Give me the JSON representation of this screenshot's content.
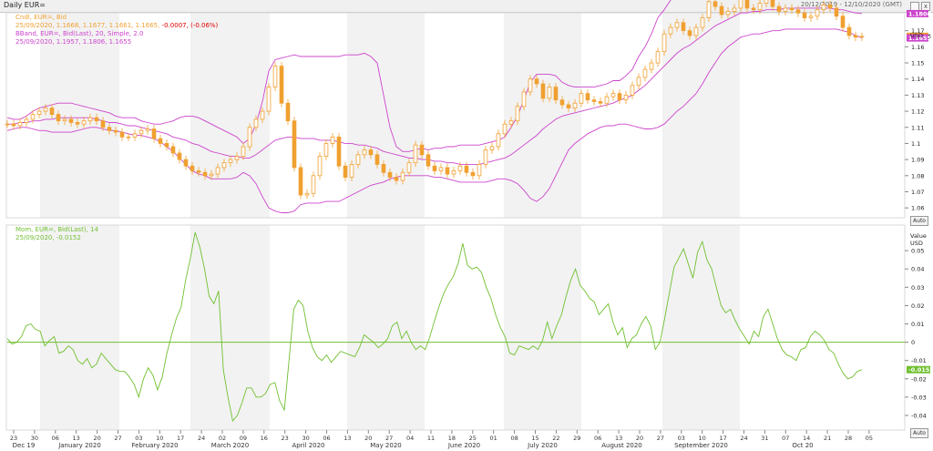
{
  "window": {
    "title": "Daily EUR=",
    "range": "20/12/2019 - 12/10/2020 (GMT)",
    "close_glyph": "x"
  },
  "legend": {
    "line1": "Cndl, EUR=, Bid",
    "line2": "25/09/2020, 1.1668, 1.1677, 1.1661, 1.1665,",
    "line2_change": "-0.0007, (-0.06%)",
    "line3": "BBand, EUR=, Bid(Last), 20, Simple, 2.0",
    "line4": "25/09/2020, 1.1957, 1.1806, 1.1655",
    "mom1": "Mom, EUR=, Bid(Last), 14",
    "mom2": "25/09/2020, -0.0152"
  },
  "axis_headers": {
    "price": "USD",
    "mom_value": "Value",
    "mom_unit": "USD"
  },
  "auto_label": "Auto",
  "colors": {
    "candle": "#f0a030",
    "bband": "#cc44cc",
    "mom": "#70c030",
    "zero": "#70c030",
    "band_bg": "#f2f2f2"
  },
  "chart_data": [
    {
      "type": "candlestick",
      "series_name": "EUR=",
      "ylim": [
        1.055,
        1.18
      ],
      "yticks": [
        1.06,
        1.07,
        1.08,
        1.09,
        1.1,
        1.11,
        1.12,
        1.13,
        1.14,
        1.15,
        1.16,
        1.17
      ],
      "ytick_labels": [
        "1.06",
        "1.07",
        "1.08",
        "1.09",
        "1.1",
        "1.11",
        "1.12",
        "1.13",
        "1.14",
        "1.15",
        "1.16",
        "1.17"
      ],
      "price_tags": [
        {
          "value": 1.1957,
          "label": "1.1957",
          "color": "#cc44cc"
        },
        {
          "value": 1.1806,
          "label": "1.1806",
          "color": "#cc44cc"
        },
        {
          "value": 1.1665,
          "label": "1.1665",
          "color": "#f0a030"
        },
        {
          "value": 1.1655,
          "label": "1.1655",
          "color": "#cc44cc"
        }
      ],
      "close": [
        1.112,
        1.111,
        1.113,
        1.115,
        1.118,
        1.12,
        1.122,
        1.118,
        1.114,
        1.115,
        1.113,
        1.112,
        1.114,
        1.116,
        1.114,
        1.11,
        1.108,
        1.107,
        1.104,
        1.104,
        1.106,
        1.108,
        1.109,
        1.103,
        1.1,
        1.098,
        1.094,
        1.09,
        1.086,
        1.083,
        1.082,
        1.08,
        1.081,
        1.085,
        1.088,
        1.09,
        1.092,
        1.098,
        1.11,
        1.115,
        1.12,
        1.135,
        1.148,
        1.125,
        1.114,
        1.085,
        1.068,
        1.069,
        1.08,
        1.092,
        1.1,
        1.104,
        1.086,
        1.079,
        1.087,
        1.093,
        1.096,
        1.093,
        1.087,
        1.082,
        1.079,
        1.077,
        1.082,
        1.088,
        1.099,
        1.093,
        1.086,
        1.083,
        1.085,
        1.081,
        1.083,
        1.086,
        1.082,
        1.08,
        1.087,
        1.096,
        1.098,
        1.106,
        1.112,
        1.114,
        1.123,
        1.132,
        1.14,
        1.137,
        1.128,
        1.135,
        1.127,
        1.124,
        1.122,
        1.125,
        1.131,
        1.127,
        1.126,
        1.125,
        1.129,
        1.131,
        1.127,
        1.13,
        1.136,
        1.141,
        1.146,
        1.15,
        1.157,
        1.168,
        1.172,
        1.175,
        1.17,
        1.167,
        1.172,
        1.178,
        1.188,
        1.185,
        1.18,
        1.182,
        1.184,
        1.19,
        1.184,
        1.183,
        1.187,
        1.193,
        1.185,
        1.182,
        1.184,
        1.183,
        1.181,
        1.178,
        1.179,
        1.183,
        1.186,
        1.184,
        1.179,
        1.172,
        1.167,
        1.166,
        1.1665
      ],
      "bband_upper": [
        1.116,
        1.115,
        1.115,
        1.117,
        1.12,
        1.122,
        1.123,
        1.124,
        1.125,
        1.125,
        1.125,
        1.124,
        1.123,
        1.122,
        1.121,
        1.12,
        1.119,
        1.117,
        1.116,
        1.116,
        1.116,
        1.114,
        1.113,
        1.112,
        1.112,
        1.113,
        1.114,
        1.116,
        1.117,
        1.117,
        1.116,
        1.114,
        1.112,
        1.11,
        1.108,
        1.106,
        1.104,
        1.1,
        1.103,
        1.112,
        1.126,
        1.145,
        1.152,
        1.153,
        1.154,
        1.155,
        1.154,
        1.154,
        1.154,
        1.154,
        1.154,
        1.154,
        1.154,
        1.155,
        1.155,
        1.155,
        1.156,
        1.154,
        1.15,
        1.13,
        1.11,
        1.098,
        1.095,
        1.095,
        1.096,
        1.097,
        1.096,
        1.097,
        1.097,
        1.098,
        1.098,
        1.099,
        1.099,
        1.099,
        1.099,
        1.1,
        1.101,
        1.102,
        1.104,
        1.11,
        1.117,
        1.127,
        1.138,
        1.143,
        1.143,
        1.143,
        1.142,
        1.138,
        1.136,
        1.135,
        1.135,
        1.135,
        1.135,
        1.136,
        1.137,
        1.139,
        1.139,
        1.142,
        1.146,
        1.154,
        1.16,
        1.168,
        1.178,
        1.183,
        1.189,
        1.192,
        1.194,
        1.196,
        1.197,
        1.197,
        1.197,
        1.197,
        1.197,
        1.197,
        1.197,
        1.198,
        1.198,
        1.197,
        1.196,
        1.196,
        1.196,
        1.196,
        1.196,
        1.196,
        1.196,
        1.196,
        1.196,
        1.196,
        1.195,
        1.194,
        1.193,
        1.193,
        1.194,
        1.1957,
        1.1957
      ],
      "bband_mid": [
        1.112,
        1.112,
        1.113,
        1.113,
        1.114,
        1.114,
        1.115,
        1.115,
        1.116,
        1.116,
        1.116,
        1.116,
        1.116,
        1.116,
        1.115,
        1.114,
        1.113,
        1.113,
        1.112,
        1.111,
        1.111,
        1.11,
        1.109,
        1.108,
        1.107,
        1.106,
        1.104,
        1.103,
        1.102,
        1.1,
        1.099,
        1.097,
        1.095,
        1.094,
        1.093,
        1.092,
        1.092,
        1.091,
        1.091,
        1.093,
        1.096,
        1.099,
        1.102,
        1.103,
        1.104,
        1.104,
        1.103,
        1.103,
        1.103,
        1.102,
        1.102,
        1.102,
        1.101,
        1.1,
        1.1,
        1.099,
        1.099,
        1.098,
        1.097,
        1.095,
        1.094,
        1.093,
        1.092,
        1.091,
        1.091,
        1.09,
        1.09,
        1.089,
        1.089,
        1.088,
        1.088,
        1.087,
        1.087,
        1.087,
        1.087,
        1.088,
        1.089,
        1.09,
        1.091,
        1.093,
        1.096,
        1.099,
        1.102,
        1.105,
        1.109,
        1.112,
        1.115,
        1.117,
        1.118,
        1.119,
        1.12,
        1.121,
        1.122,
        1.123,
        1.124,
        1.125,
        1.127,
        1.128,
        1.13,
        1.133,
        1.136,
        1.14,
        1.144,
        1.148,
        1.152,
        1.156,
        1.159,
        1.161,
        1.164,
        1.167,
        1.17,
        1.173,
        1.175,
        1.177,
        1.179,
        1.181,
        1.181,
        1.182,
        1.182,
        1.183,
        1.183,
        1.183,
        1.184,
        1.184,
        1.184,
        1.184,
        1.184,
        1.184,
        1.184,
        1.184,
        1.183,
        1.183,
        1.182,
        1.181,
        1.1806
      ],
      "bband_lower": [
        1.108,
        1.109,
        1.11,
        1.11,
        1.109,
        1.108,
        1.108,
        1.107,
        1.107,
        1.107,
        1.107,
        1.108,
        1.109,
        1.11,
        1.11,
        1.109,
        1.108,
        1.108,
        1.107,
        1.106,
        1.105,
        1.105,
        1.104,
        1.103,
        1.101,
        1.098,
        1.095,
        1.091,
        1.087,
        1.083,
        1.081,
        1.08,
        1.078,
        1.078,
        1.078,
        1.078,
        1.079,
        1.082,
        1.08,
        1.075,
        1.067,
        1.06,
        1.058,
        1.057,
        1.057,
        1.058,
        1.062,
        1.063,
        1.063,
        1.063,
        1.064,
        1.064,
        1.064,
        1.066,
        1.068,
        1.07,
        1.072,
        1.074,
        1.075,
        1.076,
        1.078,
        1.079,
        1.08,
        1.08,
        1.08,
        1.08,
        1.08,
        1.079,
        1.079,
        1.078,
        1.077,
        1.076,
        1.076,
        1.076,
        1.076,
        1.076,
        1.077,
        1.078,
        1.078,
        1.077,
        1.075,
        1.071,
        1.066,
        1.064,
        1.067,
        1.072,
        1.08,
        1.088,
        1.096,
        1.1,
        1.103,
        1.106,
        1.108,
        1.11,
        1.111,
        1.111,
        1.112,
        1.112,
        1.111,
        1.11,
        1.109,
        1.109,
        1.11,
        1.112,
        1.116,
        1.12,
        1.123,
        1.127,
        1.131,
        1.137,
        1.144,
        1.15,
        1.156,
        1.16,
        1.163,
        1.166,
        1.167,
        1.168,
        1.168,
        1.169,
        1.17,
        1.17,
        1.171,
        1.171,
        1.171,
        1.171,
        1.171,
        1.171,
        1.171,
        1.171,
        1.171,
        1.17,
        1.169,
        1.167,
        1.1655
      ]
    },
    {
      "type": "line",
      "series_name": "Mom",
      "ylim": [
        -0.047,
        0.063
      ],
      "yticks": [
        -0.04,
        -0.03,
        -0.02,
        -0.01,
        0,
        0.01,
        0.02,
        0.03,
        0.04,
        0.05
      ],
      "ytick_labels": [
        "-0.04",
        "-0.03",
        "-0.02",
        "-0.01",
        "0",
        "0.01",
        "0.02",
        "0.03",
        "0.04",
        "0.05"
      ],
      "last_value_tag": "-0.0152",
      "values": [
        0.002,
        -0.001,
        0.0,
        0.003,
        0.009,
        0.01,
        0.007,
        0.006,
        -0.002,
        0.001,
        0.003,
        -0.006,
        -0.005,
        -0.002,
        -0.004,
        -0.01,
        -0.012,
        -0.009,
        -0.014,
        -0.012,
        -0.006,
        -0.009,
        -0.012,
        -0.015,
        -0.016,
        -0.016,
        -0.019,
        -0.023,
        -0.03,
        -0.02,
        -0.014,
        -0.018,
        -0.026,
        -0.019,
        -0.006,
        0.004,
        0.013,
        0.019,
        0.034,
        0.046,
        0.06,
        0.052,
        0.04,
        0.025,
        0.021,
        0.028,
        -0.015,
        -0.03,
        -0.043,
        -0.04,
        -0.033,
        -0.025,
        -0.025,
        -0.03,
        -0.03,
        -0.028,
        -0.023,
        -0.022,
        -0.032,
        -0.037,
        -0.01,
        0.018,
        0.023,
        0.02,
        0.006,
        -0.003,
        -0.008,
        -0.01,
        -0.007,
        -0.011,
        -0.008,
        -0.005,
        -0.006,
        -0.007,
        -0.008,
        -0.003,
        0.004,
        0.002,
        0.0,
        -0.003,
        -0.001,
        0.002,
        0.009,
        0.011,
        0.002,
        0.006,
        0.0,
        -0.004,
        -0.002,
        -0.004,
        0.003,
        0.012,
        0.02,
        0.027,
        0.032,
        0.036,
        0.043,
        0.054,
        0.042,
        0.04,
        0.041,
        0.038,
        0.03,
        0.024,
        0.015,
        0.008,
        0.003,
        -0.006,
        -0.007,
        -0.002,
        -0.003,
        -0.004,
        -0.002,
        -0.004,
        0.001,
        0.011,
        0.002,
        0.009,
        0.015,
        0.025,
        0.034,
        0.04,
        0.031,
        0.028,
        0.024,
        0.022,
        0.015,
        0.018,
        0.021,
        0.011,
        0.004,
        0.008,
        -0.003,
        0.002,
        0.004,
        0.01,
        0.014,
        0.009,
        -0.004,
        0.0,
        0.013,
        0.027,
        0.041,
        0.046,
        0.051,
        0.043,
        0.035,
        0.049,
        0.055,
        0.045,
        0.04,
        0.03,
        0.02,
        0.016,
        0.018,
        0.012,
        0.007,
        0.003,
        -0.001,
        0.006,
        0.003,
        0.014,
        0.018,
        0.01,
        0.002,
        -0.004,
        -0.007,
        -0.008,
        -0.01,
        -0.004,
        -0.003,
        0.003,
        0.006,
        0.004,
        0.001,
        -0.004,
        -0.006,
        -0.012,
        -0.017,
        -0.02,
        -0.019,
        -0.016,
        -0.015
      ]
    }
  ],
  "x_axis": {
    "day_ticks": [
      "23",
      "30",
      "06",
      "13",
      "20",
      "27",
      "03",
      "10",
      "17",
      "24",
      "02",
      "09",
      "16",
      "23",
      "30",
      "06",
      "13",
      "20",
      "27",
      "04",
      "11",
      "18",
      "25",
      "01",
      "08",
      "15",
      "22",
      "29",
      "06",
      "13",
      "20",
      "27",
      "03",
      "10",
      "17",
      "24",
      "31",
      "07",
      "14",
      "21",
      "28",
      "05"
    ],
    "months": [
      "Dec 19",
      "January 2020",
      "February 2020",
      "March 2020",
      "April 2020",
      "May 2020",
      "June 2020",
      "July 2020",
      "August 2020",
      "September 2020",
      "Oct 20"
    ]
  }
}
